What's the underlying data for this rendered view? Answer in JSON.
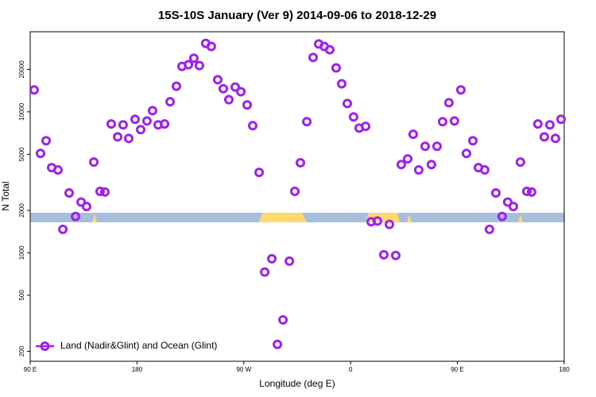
{
  "chart_data": {
    "type": "scatter",
    "title": "15S-10S January (Ver 9)   2014-09-06 to 2018-12-29",
    "xlabel": "Longitude (deg E)",
    "ylabel": "N Total",
    "x": [
      93.3,
      98.7,
      103.4,
      108.1,
      113.4,
      117.5,
      122.8,
      128.2,
      132.9,
      137.5,
      143.6,
      148.9,
      152.9,
      158.3,
      163.7,
      168.3,
      173.0,
      178.4,
      183.1,
      188.4,
      193.1,
      197.8,
      203.2,
      207.9,
      213.2,
      217.9,
      223.3,
      227.9,
      232.6,
      237.9,
      242.6,
      248.0,
      252.7,
      257.4,
      262.8,
      267.5,
      272.8,
      277.5,
      282.9,
      287.6,
      293.6,
      298.3,
      303.0,
      308.4,
      313.0,
      317.7,
      323.1,
      328.4,
      333.1,
      337.8,
      342.4,
      347.8,
      352.5,
      357.2,
      362.5,
      367.2,
      372.6,
      377.3,
      382.6,
      388.0,
      392.7,
      398.0,
      402.7,
      408.1,
      412.7,
      417.4,
      422.8,
      428.1,
      432.8,
      437.5,
      442.8,
      447.5,
      452.9,
      457.6,
      463.0,
      467.7,
      473.0,
      477.0,
      482.4,
      487.7,
      492.4,
      497.1,
      503.1,
      508.5,
      512.5,
      517.8,
      523.2,
      527.9,
      532.6,
      537.3
    ],
    "series": [
      {
        "name": "Land (Nadir&Glint) and Ocean (Glint)",
        "color": "#a020f0",
        "values": [
          14300,
          5070,
          6240,
          4020,
          3870,
          1466,
          2660,
          1810,
          2290,
          2130,
          4400,
          2730,
          2700,
          8200,
          6650,
          8080,
          6480,
          8860,
          7480,
          8620,
          10200,
          8080,
          8200,
          11800,
          15200,
          21000,
          21600,
          24000,
          21300,
          30600,
          29100,
          16900,
          14600,
          12200,
          15000,
          13900,
          11200,
          7980,
          3720,
          730,
          907,
          224,
          334,
          873,
          2730,
          4350,
          8510,
          24300,
          30300,
          29100,
          27600,
          20500,
          15830,
          11450,
          9200,
          7670,
          7890,
          1660,
          1680,
          968,
          1590,
          957,
          4230,
          4640,
          6930,
          3870,
          5700,
          4230,
          5700,
          8510,
          11600,
          8620,
          14300,
          5070,
          6240,
          4020,
          3870,
          1466,
          2660,
          1810,
          2290,
          2130,
          4400,
          2730,
          2700,
          8200,
          6650,
          8080,
          6480,
          8860
        ]
      }
    ],
    "xlim": [
      90,
      540
    ],
    "xticks": [
      {
        "value": 90,
        "label": "90 E"
      },
      180,
      {
        "value": 270,
        "label": "90 W"
      },
      {
        "value": 360,
        "label": "0"
      },
      {
        "value": 450,
        "label": "90 E"
      },
      {
        "value": 540,
        "label": "180"
      }
    ],
    "ylim": [
      170,
      37000
    ],
    "log_y": true,
    "yticks": [
      200,
      500,
      1000,
      2000,
      5000,
      10000,
      20000
    ],
    "legend": "lower left"
  }
}
